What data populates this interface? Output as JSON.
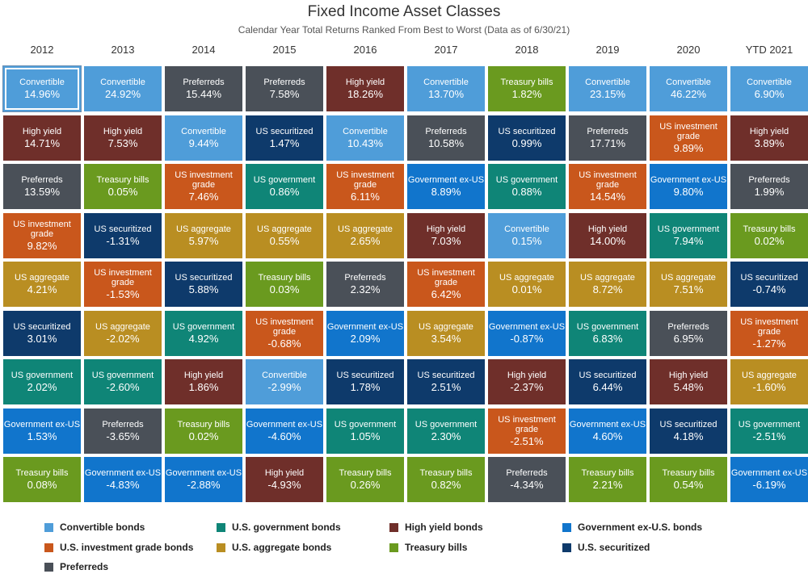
{
  "title": "Fixed Income Asset Classes",
  "subtitle": "Calendar Year Total Returns Ranked From Best to Worst (Data as of 6/30/21)",
  "colors": {
    "convertible": "#4f9dd9",
    "highyield": "#6f2f2a",
    "preferreds": "#4a5058",
    "usig": "#c9571c",
    "usagg": "#b98e22",
    "ussec": "#0e3a6b",
    "usgov": "#0f8577",
    "govexus": "#1175cc",
    "tbills": "#6a9a1f"
  },
  "chart_data": {
    "type": "table",
    "title": "Fixed Income Asset Classes",
    "subtitle": "Calendar Year Total Returns Ranked From Best to Worst (Data as of 6/30/21)",
    "years": [
      "2012",
      "2013",
      "2014",
      "2015",
      "2016",
      "2017",
      "2018",
      "2019",
      "2020",
      "YTD 2021"
    ],
    "columns": [
      {
        "year": "2012",
        "cells": [
          {
            "label": "Convertible",
            "value": "14.96%",
            "cls": "convertible"
          },
          {
            "label": "High yield",
            "value": "14.71%",
            "cls": "highyield"
          },
          {
            "label": "Preferreds",
            "value": "13.59%",
            "cls": "preferreds"
          },
          {
            "label": "US investment grade",
            "value": "9.82%",
            "cls": "usig"
          },
          {
            "label": "US aggregate",
            "value": "4.21%",
            "cls": "usagg"
          },
          {
            "label": "US securitized",
            "value": "3.01%",
            "cls": "ussec"
          },
          {
            "label": "US government",
            "value": "2.02%",
            "cls": "usgov"
          },
          {
            "label": "Government ex-US",
            "value": "1.53%",
            "cls": "govexus"
          },
          {
            "label": "Treasury bills",
            "value": "0.08%",
            "cls": "tbills"
          }
        ]
      },
      {
        "year": "2013",
        "cells": [
          {
            "label": "Convertible",
            "value": "24.92%",
            "cls": "convertible"
          },
          {
            "label": "High yield",
            "value": "7.53%",
            "cls": "highyield"
          },
          {
            "label": "Treasury bills",
            "value": "0.05%",
            "cls": "tbills"
          },
          {
            "label": "US securitized",
            "value": "-1.31%",
            "cls": "ussec"
          },
          {
            "label": "US investment grade",
            "value": "-1.53%",
            "cls": "usig"
          },
          {
            "label": "US aggregate",
            "value": "-2.02%",
            "cls": "usagg"
          },
          {
            "label": "US government",
            "value": "-2.60%",
            "cls": "usgov"
          },
          {
            "label": "Preferreds",
            "value": "-3.65%",
            "cls": "preferreds"
          },
          {
            "label": "Government ex-US",
            "value": "-4.83%",
            "cls": "govexus"
          }
        ]
      },
      {
        "year": "2014",
        "cells": [
          {
            "label": "Preferreds",
            "value": "15.44%",
            "cls": "preferreds"
          },
          {
            "label": "Convertible",
            "value": "9.44%",
            "cls": "convertible"
          },
          {
            "label": "US investment grade",
            "value": "7.46%",
            "cls": "usig"
          },
          {
            "label": "US aggregate",
            "value": "5.97%",
            "cls": "usagg"
          },
          {
            "label": "US securitized",
            "value": "5.88%",
            "cls": "ussec"
          },
          {
            "label": "US government",
            "value": "4.92%",
            "cls": "usgov"
          },
          {
            "label": "High yield",
            "value": "1.86%",
            "cls": "highyield"
          },
          {
            "label": "Treasury bills",
            "value": "0.02%",
            "cls": "tbills"
          },
          {
            "label": "Government ex-US",
            "value": "-2.88%",
            "cls": "govexus"
          }
        ]
      },
      {
        "year": "2015",
        "cells": [
          {
            "label": "Preferreds",
            "value": "7.58%",
            "cls": "preferreds"
          },
          {
            "label": "US securitized",
            "value": "1.47%",
            "cls": "ussec"
          },
          {
            "label": "US government",
            "value": "0.86%",
            "cls": "usgov"
          },
          {
            "label": "US aggregate",
            "value": "0.55%",
            "cls": "usagg"
          },
          {
            "label": "Treasury bills",
            "value": "0.03%",
            "cls": "tbills"
          },
          {
            "label": "US investment grade",
            "value": "-0.68%",
            "cls": "usig"
          },
          {
            "label": "Convertible",
            "value": "-2.99%",
            "cls": "convertible"
          },
          {
            "label": "Government ex-US",
            "value": "-4.60%",
            "cls": "govexus"
          },
          {
            "label": "High yield",
            "value": "-4.93%",
            "cls": "highyield"
          }
        ]
      },
      {
        "year": "2016",
        "cells": [
          {
            "label": "High yield",
            "value": "18.26%",
            "cls": "highyield"
          },
          {
            "label": "Convertible",
            "value": "10.43%",
            "cls": "convertible"
          },
          {
            "label": "US investment grade",
            "value": "6.11%",
            "cls": "usig"
          },
          {
            "label": "US aggregate",
            "value": "2.65%",
            "cls": "usagg"
          },
          {
            "label": "Preferreds",
            "value": "2.32%",
            "cls": "preferreds"
          },
          {
            "label": "Government ex-US",
            "value": "2.09%",
            "cls": "govexus"
          },
          {
            "label": "US securitized",
            "value": "1.78%",
            "cls": "ussec"
          },
          {
            "label": "US government",
            "value": "1.05%",
            "cls": "usgov"
          },
          {
            "label": "Treasury bills",
            "value": "0.26%",
            "cls": "tbills"
          }
        ]
      },
      {
        "year": "2017",
        "cells": [
          {
            "label": "Convertible",
            "value": "13.70%",
            "cls": "convertible"
          },
          {
            "label": "Preferreds",
            "value": "10.58%",
            "cls": "preferreds"
          },
          {
            "label": "Government ex-US",
            "value": "8.89%",
            "cls": "govexus"
          },
          {
            "label": "High yield",
            "value": "7.03%",
            "cls": "highyield"
          },
          {
            "label": "US investment grade",
            "value": "6.42%",
            "cls": "usig"
          },
          {
            "label": "US aggregate",
            "value": "3.54%",
            "cls": "usagg"
          },
          {
            "label": "US securitized",
            "value": "2.51%",
            "cls": "ussec"
          },
          {
            "label": "US government",
            "value": "2.30%",
            "cls": "usgov"
          },
          {
            "label": "Treasury bills",
            "value": "0.82%",
            "cls": "tbills"
          }
        ]
      },
      {
        "year": "2018",
        "cells": [
          {
            "label": "Treasury bills",
            "value": "1.82%",
            "cls": "tbills"
          },
          {
            "label": "US securitized",
            "value": "0.99%",
            "cls": "ussec"
          },
          {
            "label": "US government",
            "value": "0.88%",
            "cls": "usgov"
          },
          {
            "label": "Convertible",
            "value": "0.15%",
            "cls": "convertible"
          },
          {
            "label": "US aggregate",
            "value": "0.01%",
            "cls": "usagg"
          },
          {
            "label": "Government ex-US",
            "value": "-0.87%",
            "cls": "govexus"
          },
          {
            "label": "High yield",
            "value": "-2.37%",
            "cls": "highyield"
          },
          {
            "label": "US investment grade",
            "value": "-2.51%",
            "cls": "usig"
          },
          {
            "label": "Preferreds",
            "value": "-4.34%",
            "cls": "preferreds"
          }
        ]
      },
      {
        "year": "2019",
        "cells": [
          {
            "label": "Convertible",
            "value": "23.15%",
            "cls": "convertible"
          },
          {
            "label": "Preferreds",
            "value": "17.71%",
            "cls": "preferreds"
          },
          {
            "label": "US investment grade",
            "value": "14.54%",
            "cls": "usig"
          },
          {
            "label": "High yield",
            "value": "14.00%",
            "cls": "highyield"
          },
          {
            "label": "US aggregate",
            "value": "8.72%",
            "cls": "usagg"
          },
          {
            "label": "US government",
            "value": "6.83%",
            "cls": "usgov"
          },
          {
            "label": "US securitized",
            "value": "6.44%",
            "cls": "ussec"
          },
          {
            "label": "Government ex-US",
            "value": "4.60%",
            "cls": "govexus"
          },
          {
            "label": "Treasury bills",
            "value": "2.21%",
            "cls": "tbills"
          }
        ]
      },
      {
        "year": "2020",
        "cells": [
          {
            "label": "Convertible",
            "value": "46.22%",
            "cls": "convertible"
          },
          {
            "label": "US investment grade",
            "value": "9.89%",
            "cls": "usig"
          },
          {
            "label": "Government ex-US",
            "value": "9.80%",
            "cls": "govexus"
          },
          {
            "label": "US government",
            "value": "7.94%",
            "cls": "usgov"
          },
          {
            "label": "US aggregate",
            "value": "7.51%",
            "cls": "usagg"
          },
          {
            "label": "Preferreds",
            "value": "6.95%",
            "cls": "preferreds"
          },
          {
            "label": "High yield",
            "value": "5.48%",
            "cls": "highyield"
          },
          {
            "label": "US securitized",
            "value": "4.18%",
            "cls": "ussec"
          },
          {
            "label": "Treasury bills",
            "value": "0.54%",
            "cls": "tbills"
          }
        ]
      },
      {
        "year": "YTD 2021",
        "cells": [
          {
            "label": "Convertible",
            "value": "6.90%",
            "cls": "convertible"
          },
          {
            "label": "High yield",
            "value": "3.89%",
            "cls": "highyield"
          },
          {
            "label": "Preferreds",
            "value": "1.99%",
            "cls": "preferreds"
          },
          {
            "label": "Treasury bills",
            "value": "0.02%",
            "cls": "tbills"
          },
          {
            "label": "US securitized",
            "value": "-0.74%",
            "cls": "ussec"
          },
          {
            "label": "US investment grade",
            "value": "-1.27%",
            "cls": "usig"
          },
          {
            "label": "US aggregate",
            "value": "-1.60%",
            "cls": "usagg"
          },
          {
            "label": "US government",
            "value": "-2.51%",
            "cls": "usgov"
          },
          {
            "label": "Government ex-US",
            "value": "-6.19%",
            "cls": "govexus"
          }
        ]
      }
    ],
    "legend": [
      {
        "label": "Convertible bonds",
        "cls": "convertible"
      },
      {
        "label": "U.S. government bonds",
        "cls": "usgov"
      },
      {
        "label": "High yield bonds",
        "cls": "highyield"
      },
      {
        "label": "Government ex-U.S. bonds",
        "cls": "govexus"
      },
      {
        "label": "U.S. investment grade bonds",
        "cls": "usig"
      },
      {
        "label": "U.S. aggregate bonds",
        "cls": "usagg"
      },
      {
        "label": "Treasury bills",
        "cls": "tbills"
      },
      {
        "label": "U.S. securitized",
        "cls": "ussec"
      },
      {
        "label": "Preferreds",
        "cls": "preferreds"
      }
    ]
  }
}
